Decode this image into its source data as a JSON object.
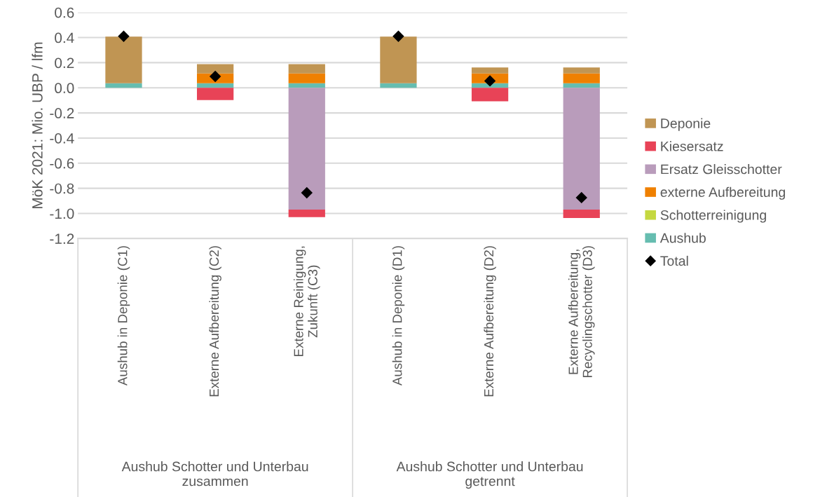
{
  "chart_data": {
    "type": "bar",
    "stacked": true,
    "ylabel": "MöK 2021: Mio. UBP / lfm",
    "categories": [
      "Aushub in Deponie (C1)",
      "Externe Aufbereitung (C2)",
      "Externe Reinigung,\nZukunft (C3)",
      "Aushub in Deponie (D1)",
      "Externe Aufbereitung (D2)",
      "Externe Aufbereitung,\nRecyclingschotter (D3)"
    ],
    "series": [
      {
        "name": "Aushub",
        "color": "#66bdb0",
        "values": [
          0.036,
          0.036,
          0.036,
          0.036,
          0.036,
          0.036
        ]
      },
      {
        "name": "Schotterreinigung",
        "color": "#c5d840",
        "values": [
          0,
          0,
          0,
          0,
          0,
          0
        ]
      },
      {
        "name": "externe Aufbereitung",
        "color": "#ef8000",
        "values": [
          0,
          0.078,
          0.078,
          0,
          0.078,
          0.078
        ]
      },
      {
        "name": "Ersatz Gleisschotter",
        "color": "#b99cbb",
        "values": [
          0,
          0,
          -0.97,
          0,
          0,
          -0.97
        ]
      },
      {
        "name": "Kiesersatz",
        "color": "#e84357",
        "values": [
          0,
          -0.097,
          -0.06,
          0,
          -0.107,
          -0.066
        ]
      },
      {
        "name": "Deponie",
        "color": "#c09553",
        "values": [
          0.372,
          0.075,
          0.075,
          0.372,
          0.048,
          0.048
        ]
      },
      {
        "name": "Total",
        "type": "scatter",
        "marker": "diamond",
        "color": "#000000",
        "values": [
          0.41,
          0.091,
          -0.836,
          0.41,
          0.055,
          -0.874
        ]
      }
    ],
    "annotations": [
      "Aushub Schotter und Unterbau\nzusammen",
      "Aushub Schotter und Unterbau\ngetrennt"
    ],
    "ylim": [
      -1.2,
      0.6
    ],
    "yticks": [
      {
        "value": -1.2,
        "label": "-1.2"
      },
      {
        "value": -1.0,
        "label": "-1.0"
      },
      {
        "value": -0.8,
        "label": "-0.8"
      },
      {
        "value": -0.6,
        "label": "-0.6"
      },
      {
        "value": -0.4,
        "label": "-0.4"
      },
      {
        "value": -0.2,
        "label": "-0.2"
      },
      {
        "value": 0.0,
        "label": "0.0"
      },
      {
        "value": 0.2,
        "label": "0.2"
      },
      {
        "value": 0.4,
        "label": "0.4"
      },
      {
        "value": 0.6,
        "label": "0.6"
      }
    ],
    "grid": "y",
    "legend": "right"
  }
}
